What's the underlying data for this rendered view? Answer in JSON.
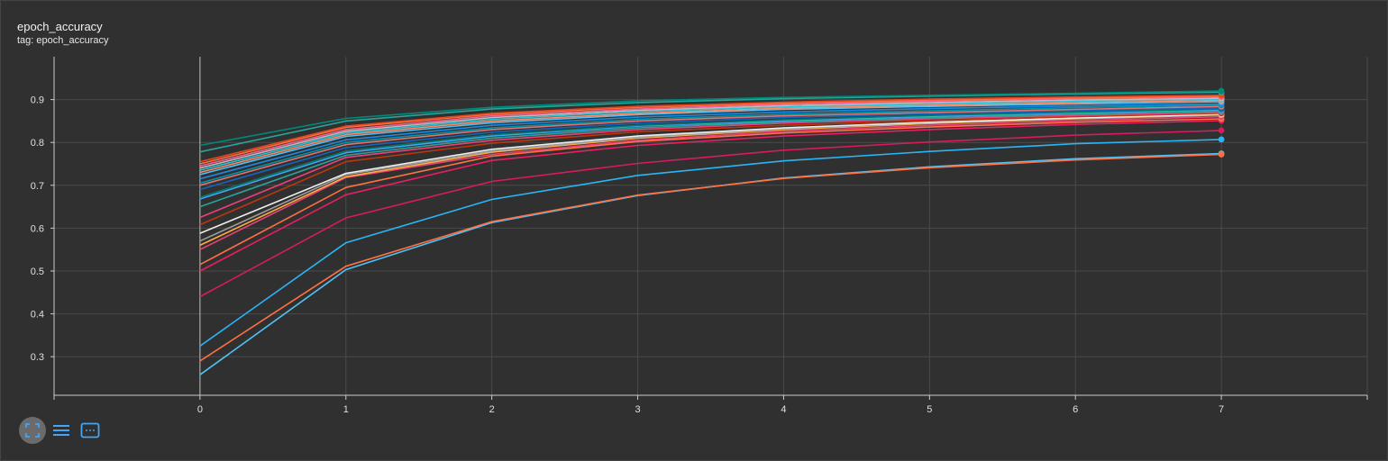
{
  "card": {
    "title": "epoch_accuracy",
    "subtitle": "tag: epoch_accuracy"
  },
  "colors": {
    "background": "#303030",
    "grid": "#4a4a4a",
    "axis": "#cccccc",
    "tick_text": "#e0e0e0",
    "accent": "#42a5f5"
  },
  "toolbar": [
    {
      "name": "fit-domain-button",
      "icon": "expand-icon"
    },
    {
      "name": "log-scale-button",
      "icon": "list-icon"
    },
    {
      "name": "reset-view-button",
      "icon": "dotted-frame-icon"
    }
  ],
  "chart_data": {
    "type": "line",
    "title": "epoch_accuracy",
    "xlabel": "",
    "ylabel": "",
    "x": [
      0,
      1,
      2,
      3,
      4,
      5,
      6,
      7
    ],
    "xlim": [
      -1,
      8
    ],
    "ylim": [
      0.21,
      1.0
    ],
    "xticks": [
      0,
      1,
      2,
      3,
      4,
      5,
      6,
      7
    ],
    "yticks": [
      0.3,
      0.4,
      0.5,
      0.6,
      0.7,
      0.8,
      0.9
    ],
    "grid": true,
    "legend": "none",
    "series": [
      {
        "color": "#00897b",
        "values": [
          0.793,
          0.856,
          0.882,
          0.897,
          0.905,
          0.91,
          0.915,
          0.92
        ]
      },
      {
        "color": "#26a69a",
        "values": [
          0.778,
          0.85,
          0.878,
          0.893,
          0.902,
          0.908,
          0.913,
          0.917
        ]
      },
      {
        "color": "#e64a19",
        "values": [
          0.755,
          0.838,
          0.868,
          0.884,
          0.894,
          0.901,
          0.906,
          0.91
        ]
      },
      {
        "color": "#ff7043",
        "values": [
          0.75,
          0.835,
          0.866,
          0.882,
          0.892,
          0.899,
          0.904,
          0.908
        ]
      },
      {
        "color": "#f06292",
        "values": [
          0.745,
          0.83,
          0.862,
          0.878,
          0.889,
          0.896,
          0.902,
          0.906
        ]
      },
      {
        "color": "#bdbdbd",
        "values": [
          0.74,
          0.826,
          0.858,
          0.875,
          0.886,
          0.893,
          0.899,
          0.903
        ]
      },
      {
        "color": "#26c6da",
        "values": [
          0.735,
          0.822,
          0.854,
          0.872,
          0.883,
          0.89,
          0.896,
          0.901
        ]
      },
      {
        "color": "#ff8a65",
        "values": [
          0.73,
          0.818,
          0.85,
          0.868,
          0.88,
          0.887,
          0.893,
          0.898
        ]
      },
      {
        "color": "#4fc3f7",
        "values": [
          0.725,
          0.814,
          0.846,
          0.865,
          0.877,
          0.884,
          0.89,
          0.895
        ]
      },
      {
        "color": "#1e88e5",
        "values": [
          0.715,
          0.806,
          0.84,
          0.859,
          0.871,
          0.879,
          0.885,
          0.89
        ]
      },
      {
        "color": "#0097a7",
        "values": [
          0.705,
          0.8,
          0.834,
          0.854,
          0.866,
          0.874,
          0.881,
          0.887
        ]
      },
      {
        "color": "#e57373",
        "values": [
          0.7,
          0.795,
          0.83,
          0.85,
          0.862,
          0.87,
          0.877,
          0.884
        ]
      },
      {
        "color": "#1565c0",
        "values": [
          0.69,
          0.788,
          0.824,
          0.845,
          0.858,
          0.867,
          0.874,
          0.881
        ]
      },
      {
        "color": "#00796b",
        "values": [
          0.672,
          0.78,
          0.818,
          0.84,
          0.853,
          0.863,
          0.871,
          0.878
        ]
      },
      {
        "color": "#42a5f5",
        "values": [
          0.668,
          0.776,
          0.815,
          0.838,
          0.851,
          0.861,
          0.869,
          0.876
        ]
      },
      {
        "color": "#26a69a",
        "values": [
          0.65,
          0.77,
          0.81,
          0.834,
          0.848,
          0.858,
          0.866,
          0.873
        ]
      },
      {
        "color": "#ec407a",
        "values": [
          0.625,
          0.765,
          0.805,
          0.83,
          0.845,
          0.855,
          0.863,
          0.87
        ]
      },
      {
        "color": "#bf360c",
        "values": [
          0.608,
          0.755,
          0.798,
          0.825,
          0.84,
          0.851,
          0.86,
          0.868
        ]
      },
      {
        "color": "#eeeeee",
        "values": [
          0.588,
          0.728,
          0.784,
          0.815,
          0.834,
          0.847,
          0.857,
          0.866
        ]
      },
      {
        "color": "#9e9e9e",
        "values": [
          0.57,
          0.725,
          0.78,
          0.812,
          0.832,
          0.846,
          0.856,
          0.865
        ]
      },
      {
        "color": "#ffab40",
        "values": [
          0.56,
          0.72,
          0.777,
          0.81,
          0.83,
          0.844,
          0.855,
          0.864
        ]
      },
      {
        "color": "#ec407a",
        "values": [
          0.55,
          0.718,
          0.772,
          0.805,
          0.826,
          0.84,
          0.851,
          0.86
        ]
      },
      {
        "color": "#ff7043",
        "values": [
          0.515,
          0.695,
          0.768,
          0.802,
          0.822,
          0.836,
          0.847,
          0.855
        ]
      },
      {
        "color": "#e91e63",
        "values": [
          0.5,
          0.678,
          0.758,
          0.793,
          0.815,
          0.83,
          0.842,
          0.851
        ]
      },
      {
        "color": "#d81b60",
        "values": [
          0.44,
          0.624,
          0.709,
          0.751,
          0.782,
          0.801,
          0.817,
          0.828
        ]
      },
      {
        "color": "#29b6f6",
        "values": [
          0.325,
          0.566,
          0.667,
          0.723,
          0.757,
          0.779,
          0.797,
          0.807
        ]
      },
      {
        "color": "#ff7043",
        "values": [
          0.29,
          0.511,
          0.615,
          0.677,
          0.716,
          0.741,
          0.759,
          0.772
        ]
      },
      {
        "color": "#4fc3f7",
        "values": [
          0.258,
          0.503,
          0.613,
          0.676,
          0.717,
          0.743,
          0.762,
          0.774
        ]
      }
    ]
  }
}
